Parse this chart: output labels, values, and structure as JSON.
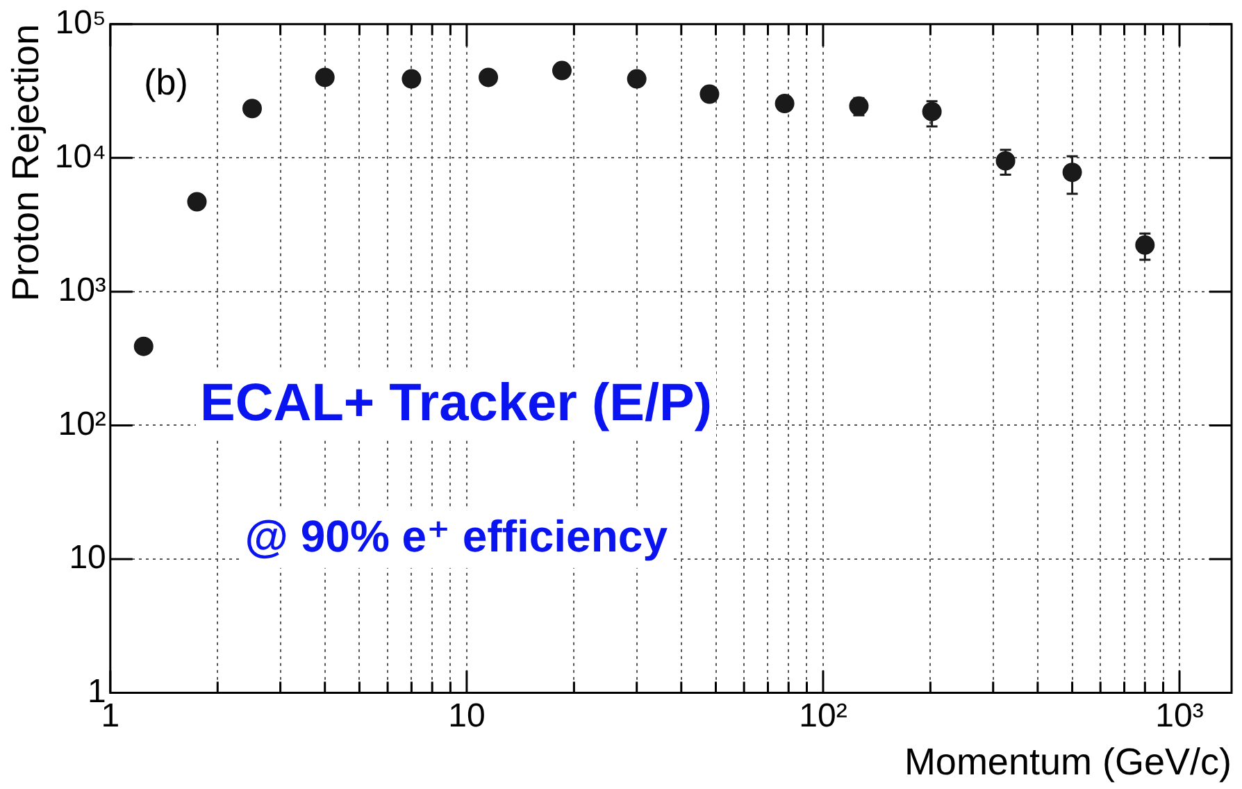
{
  "chart_data": {
    "type": "scatter",
    "xlabel": "Momentum (GeV/c)",
    "ylabel": "Proton Rejection",
    "annotations": [
      "(b)",
      "ECAL+ Tracker (E/P)",
      "@ 90% e⁺ efficiency"
    ],
    "log": "xy",
    "grid": true,
    "legend": false,
    "marker": "circle",
    "xlim": [
      1,
      1400
    ],
    "xticks": [
      1,
      {
        "value": 2,
        "label": null
      },
      {
        "value": 3,
        "label": null
      },
      {
        "value": 4,
        "label": null
      },
      {
        "value": 5,
        "label": null
      },
      {
        "value": 6,
        "label": null
      },
      {
        "value": 7,
        "label": null
      },
      {
        "value": 8,
        "label": null
      },
      {
        "value": 9,
        "label": null
      },
      10,
      {
        "value": 20,
        "label": null
      },
      {
        "value": 30,
        "label": null
      },
      {
        "value": 40,
        "label": null
      },
      {
        "value": 50,
        "label": null
      },
      {
        "value": 60,
        "label": null
      },
      {
        "value": 70,
        "label": null
      },
      {
        "value": 80,
        "label": null
      },
      {
        "value": 90,
        "label": null
      },
      {
        "value": 100,
        "label": "10²"
      },
      {
        "value": 200,
        "label": null
      },
      {
        "value": 300,
        "label": null
      },
      {
        "value": 400,
        "label": null
      },
      {
        "value": 500,
        "label": null
      },
      {
        "value": 600,
        "label": null
      },
      {
        "value": 700,
        "label": null
      },
      {
        "value": 800,
        "label": null
      },
      {
        "value": 900,
        "label": null
      },
      {
        "value": 1000,
        "label": "10³"
      }
    ],
    "ylim": [
      1,
      100000
    ],
    "yticks": [
      1,
      10,
      {
        "value": 100,
        "label": "10²"
      },
      {
        "value": 1000,
        "label": "10³"
      },
      {
        "value": 10000,
        "label": "10⁴"
      },
      {
        "value": 100000,
        "label": "10⁵"
      }
    ],
    "series": [
      {
        "color": "#1a1a1a",
        "x": [
          1.24,
          1.75,
          2.5,
          4.0,
          7.0,
          11.5,
          18.5,
          30,
          48,
          78,
          126,
          202,
          325,
          500,
          800
        ],
        "values": [
          390,
          4700,
          23400,
          40000,
          39000,
          40000,
          45000,
          39000,
          30000,
          25500,
          24400,
          22200,
          9500,
          7800,
          2230
        ],
        "errors": [
          null,
          null,
          null,
          null,
          null,
          null,
          null,
          null,
          null,
          null,
          [
            20800,
            28000
          ],
          [
            17200,
            26500
          ],
          [
            7500,
            11500
          ],
          [
            5400,
            10300
          ],
          [
            1730,
            2720
          ]
        ]
      }
    ]
  }
}
